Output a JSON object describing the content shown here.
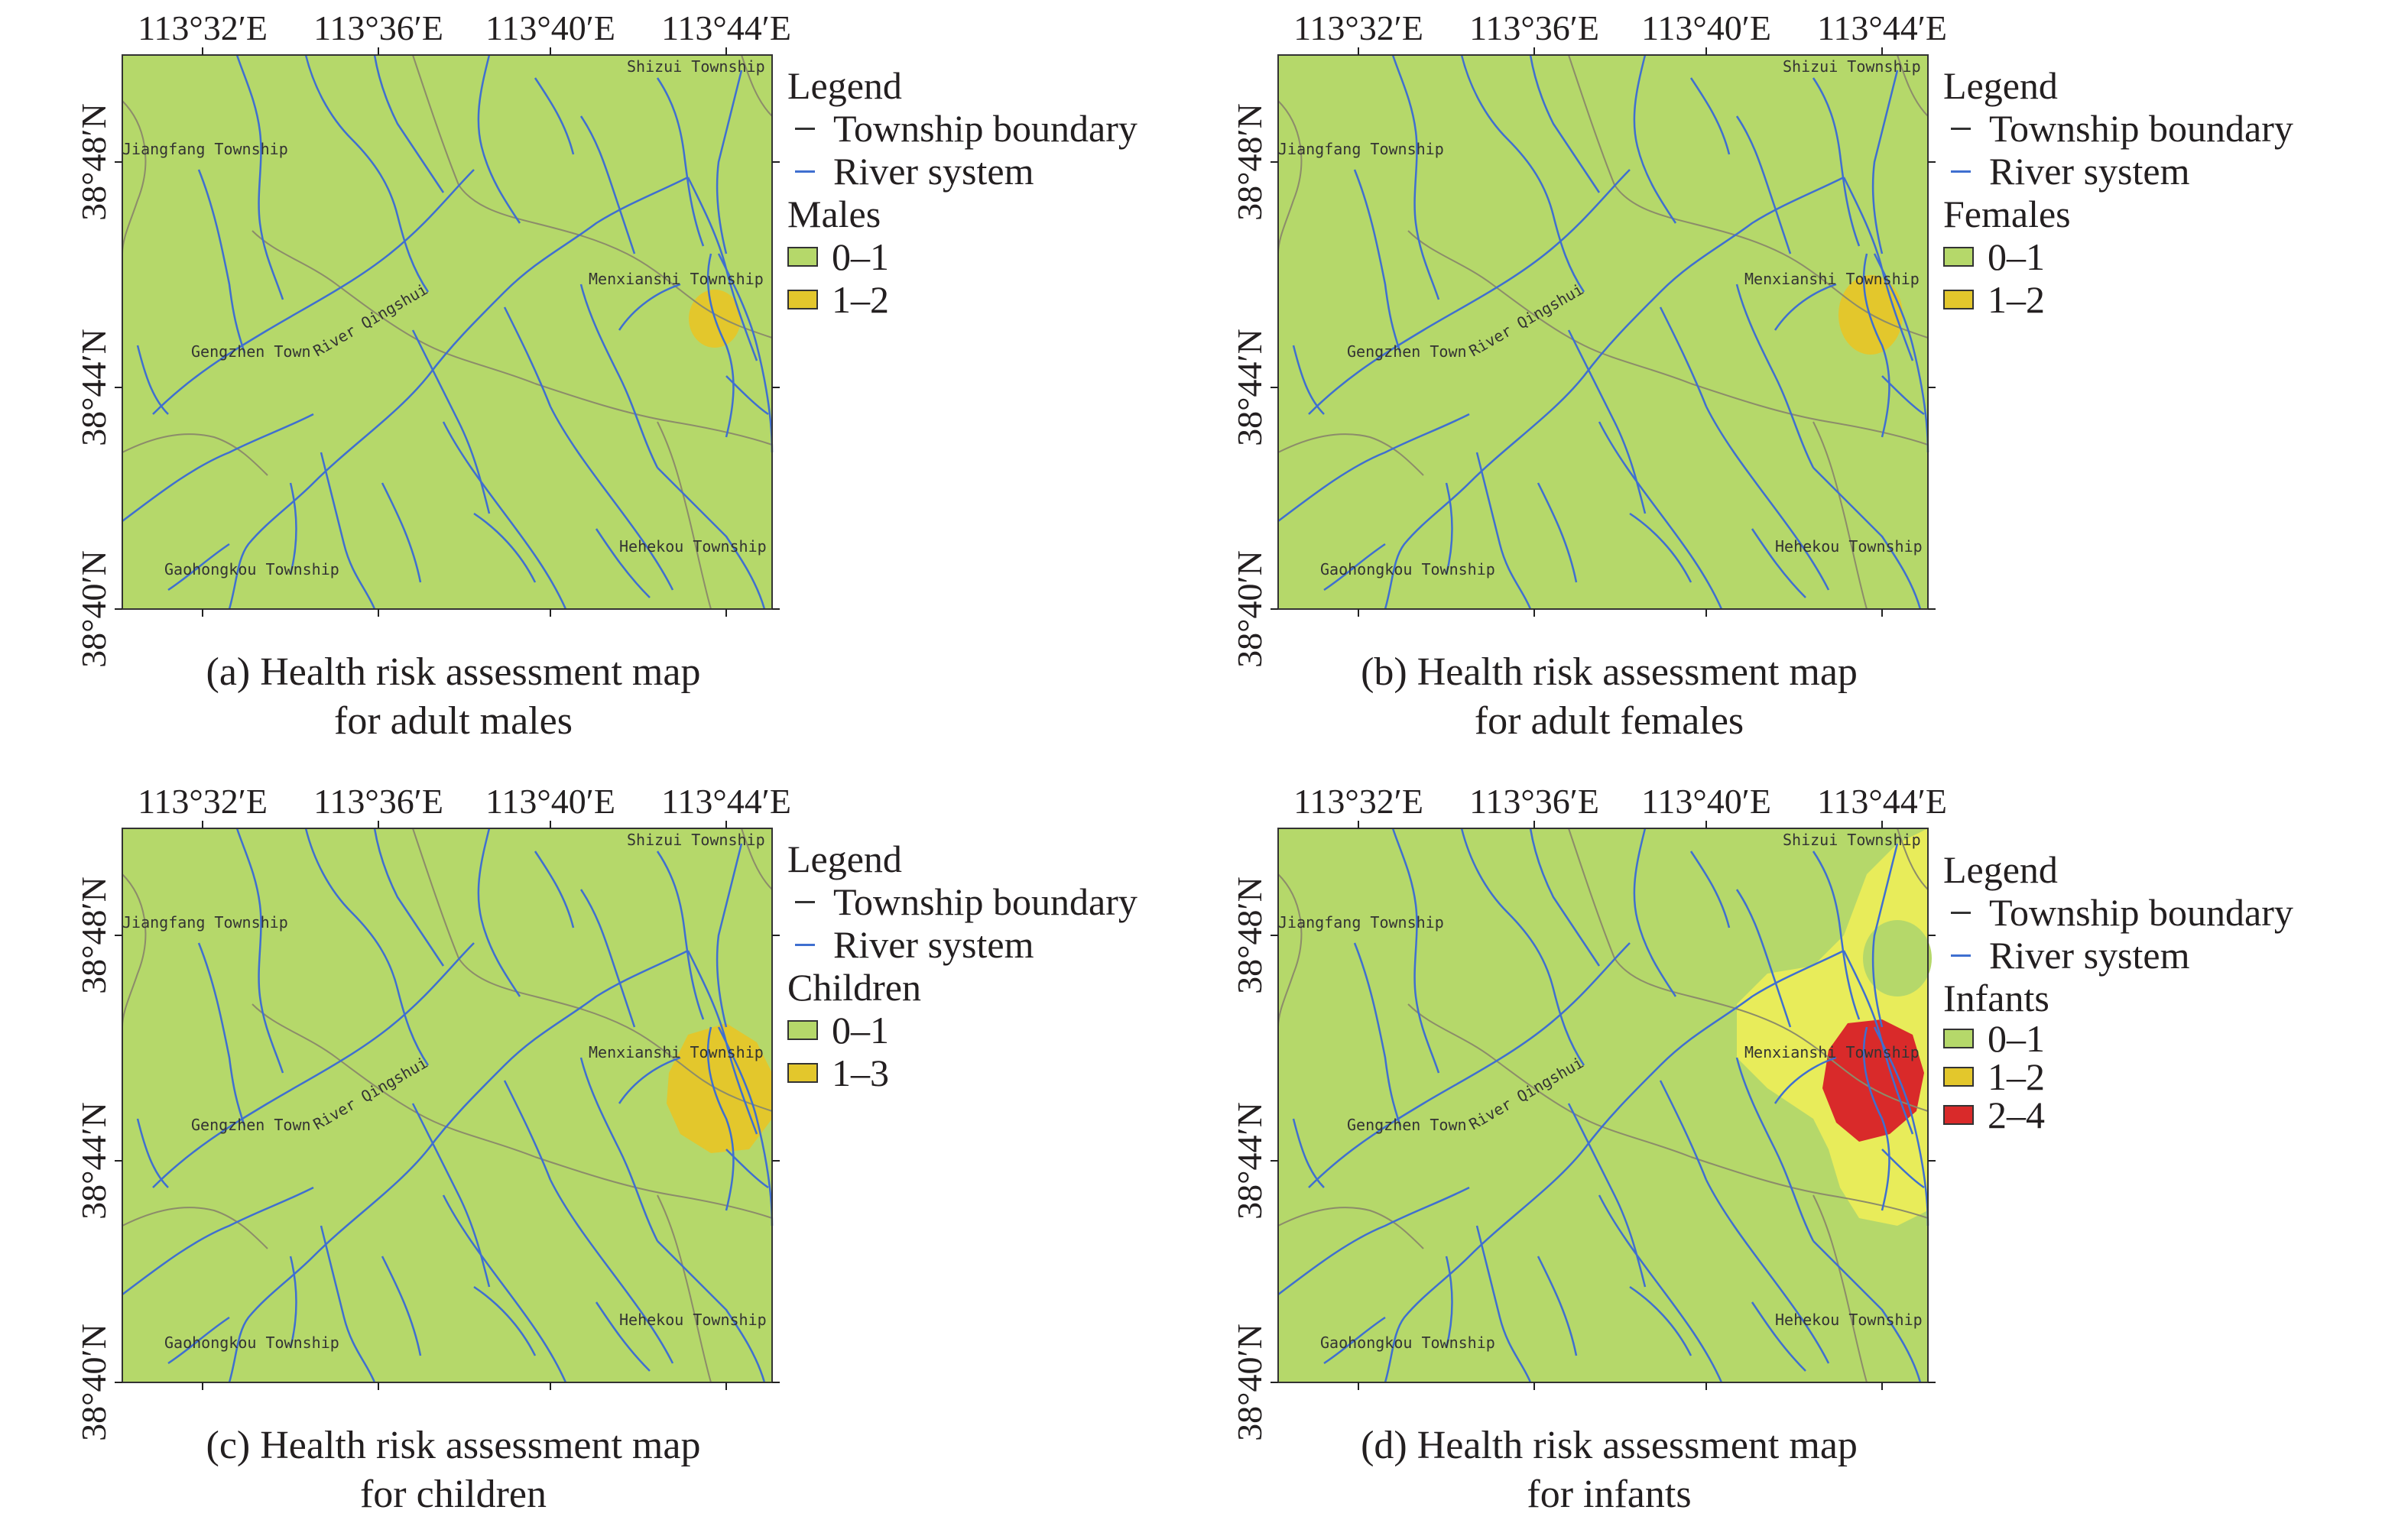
{
  "colors": {
    "low": "#b5d86a",
    "mid": "#e3c72c",
    "mid_light": "#e8ec5a",
    "high": "#d92a2a",
    "river": "#3f6fd0",
    "boundary": "#8c8c6a",
    "frame": "#333333"
  },
  "axes": {
    "lon_labels": [
      "113°32′E",
      "113°36′E",
      "113°40′E",
      "113°44′E"
    ],
    "lat_labels": [
      "38°48′N",
      "38°44′N",
      "38°40′N"
    ]
  },
  "map_labels": {
    "shizui": "Shizui Township",
    "jiangfang": "Jiangfang Township",
    "menxianshi": "Menxianshi Township",
    "gengzhen": "Gengzhen Town",
    "river": "River Qingshui",
    "gaohongkou": "Gaohongkou Township",
    "hehekou": "Hehekou Township"
  },
  "legend": {
    "title": "Legend",
    "township_boundary": "Township boundary",
    "river_system": "River system"
  },
  "panels": [
    {
      "id": "a",
      "caption_line1": "(a) Health risk assessment map",
      "caption_line2": "for adult males",
      "group": "Males",
      "classes": [
        {
          "label": "0–1",
          "color": "#b5d86a"
        },
        {
          "label": "1–2",
          "color": "#e3c72c"
        }
      ]
    },
    {
      "id": "b",
      "caption_line1": "(b) Health risk assessment map",
      "caption_line2": "for adult females",
      "group": "Females",
      "classes": [
        {
          "label": "0–1",
          "color": "#b5d86a"
        },
        {
          "label": "1–2",
          "color": "#e3c72c"
        }
      ]
    },
    {
      "id": "c",
      "caption_line1": "(c) Health risk assessment map",
      "caption_line2": "for children",
      "group": "Children",
      "classes": [
        {
          "label": "0–1",
          "color": "#b5d86a"
        },
        {
          "label": "1–3",
          "color": "#e3c72c"
        }
      ]
    },
    {
      "id": "d",
      "caption_line1": "(d) Health risk assessment map",
      "caption_line2": "for infants",
      "group": "Infants",
      "classes": [
        {
          "label": "0–1",
          "color": "#b5d86a"
        },
        {
          "label": "1–2",
          "color": "#e3c72c"
        },
        {
          "label": "2–4",
          "color": "#d92a2a"
        }
      ]
    }
  ]
}
